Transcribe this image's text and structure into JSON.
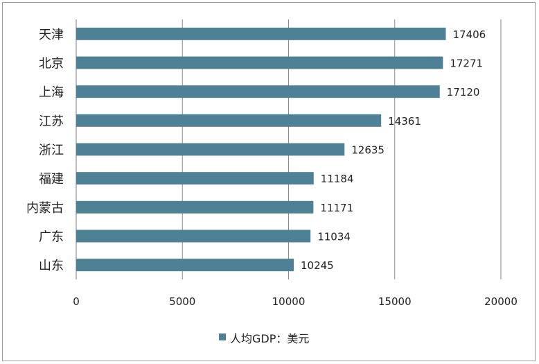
{
  "chart_data": {
    "type": "bar",
    "orientation": "horizontal",
    "categories": [
      "天津",
      "北京",
      "上海",
      "江苏",
      "浙江",
      "福建",
      "内蒙古",
      "广东",
      "山东"
    ],
    "series": [
      {
        "name": "人均GDP：美元",
        "values": [
          17406,
          17271,
          17120,
          14361,
          12635,
          11184,
          11171,
          11034,
          10245
        ]
      }
    ],
    "xlim": [
      0,
      20000
    ],
    "x_ticks": [
      0,
      5000,
      10000,
      15000,
      20000
    ],
    "grid": true,
    "legend": "bottom",
    "bar_color": "#4f8196",
    "data_labels": true
  }
}
